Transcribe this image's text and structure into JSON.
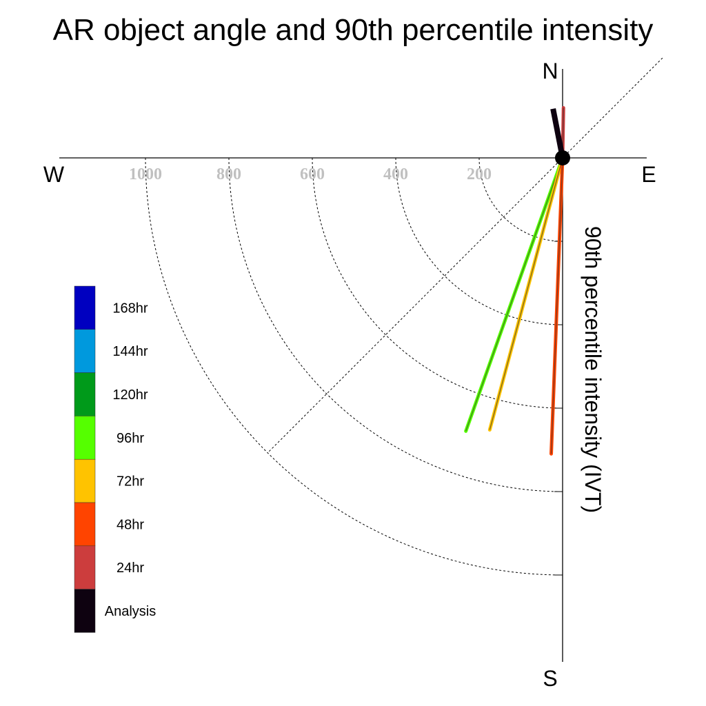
{
  "chart_data": {
    "type": "polar-vector",
    "title": "AR object angle and 90th percentile intensity",
    "radial_axis_label": "90th percentile intensity (IVT)",
    "compass": {
      "north": "N",
      "south": "S",
      "west": "W",
      "east": "E"
    },
    "radial_ticks": [
      200,
      400,
      600,
      800,
      1000
    ],
    "radial_tick_labels": [
      "200",
      "400",
      "600",
      "800",
      "1000"
    ],
    "radial_range": [
      0,
      1150
    ],
    "legend": [
      {
        "label": "168hr",
        "color": "#0000c0"
      },
      {
        "label": "144hr",
        "color": "#0099dd"
      },
      {
        "label": "120hr",
        "color": "#009a1a"
      },
      {
        "label": "96hr",
        "color": "#55ff00"
      },
      {
        "label": "72hr",
        "color": "#ffc300"
      },
      {
        "label": "48hr",
        "color": "#ff4400"
      },
      {
        "label": "24hr",
        "color": "#cc3d3d"
      },
      {
        "label": "Analysis",
        "color": "#0e0210"
      }
    ],
    "series": [
      {
        "name": "96hr",
        "color": "#55ff00",
        "angle_deg": 199.5,
        "value": 695
      },
      {
        "name": "72hr",
        "color": "#ffc300",
        "angle_deg": 195.0,
        "value": 675
      },
      {
        "name": "48hr",
        "color": "#ff4400",
        "angle_deg": 182.2,
        "value": 710
      },
      {
        "name": "24hr",
        "color": "#cc3d3d",
        "angle_deg": 1.0,
        "value": 120
      },
      {
        "name": "Analysis",
        "color": "#0e0210",
        "angle_deg": 349.0,
        "value": 120
      }
    ]
  }
}
